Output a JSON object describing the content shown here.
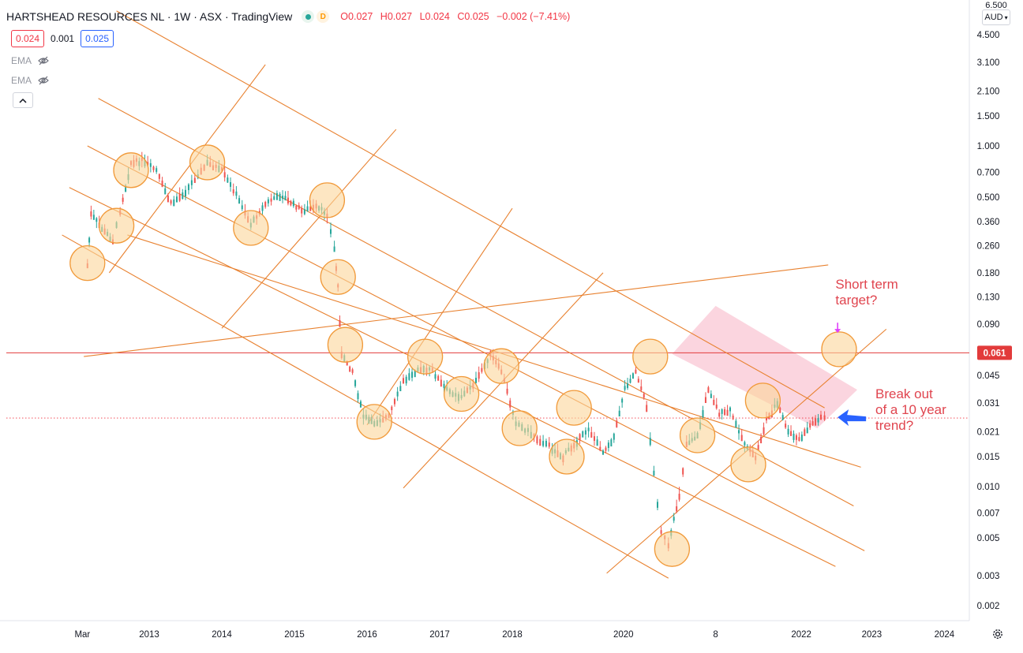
{
  "header": {
    "title": "HARTSHEAD RESOURCES NL · 1W · ASX · TradingView",
    "status_badge": "D",
    "ohlc": {
      "open": "O0.027",
      "high": "H0.027",
      "low": "L0.024",
      "close": "C0.025",
      "change": "−0.002 (−7.41%)"
    }
  },
  "quote": {
    "bid": "0.024",
    "spread": "0.001",
    "ask": "0.025"
  },
  "indicators": [
    {
      "label": "EMA"
    },
    {
      "label": "EMA"
    }
  ],
  "currency": "AUD",
  "colors": {
    "channel": "#e8812f",
    "hline": "#e23b3b",
    "circle_fill": "#fbd59a",
    "circle_stroke": "#f19a3a",
    "zone": "#f7b3c4",
    "annotation": "#e0454f",
    "arrow": "#2962ff",
    "marker": "#e040fb"
  },
  "chart_data": {
    "type": "candlestick",
    "scale": "log",
    "ylim": [
      0.0016,
      6.5
    ],
    "x_ticks": [
      "Mar",
      "2013",
      "2014",
      "2015",
      "2016",
      "2017",
      "2018",
      "2020",
      "8",
      "2022",
      "2023",
      "2024"
    ],
    "y_ticks": [
      "4.500",
      "3.100",
      "2.100",
      "1.500",
      "1.000",
      "0.700",
      "0.500",
      "0.360",
      "0.260",
      "0.180",
      "0.130",
      "0.090",
      "0.061",
      "0.045",
      "0.031",
      "0.021",
      "0.015",
      "0.010",
      "0.007",
      "0.005",
      "0.003",
      "0.002"
    ],
    "y_top_partial": "6.500",
    "current_price_label": "0.061",
    "horizontal_line_value": 0.061,
    "last_close": 0.025,
    "series_points": [
      [
        2012.15,
        0.2
      ],
      [
        2012.2,
        0.4
      ],
      [
        2012.35,
        0.33
      ],
      [
        2012.5,
        0.28
      ],
      [
        2012.6,
        0.42
      ],
      [
        2012.75,
        0.8
      ],
      [
        2012.9,
        0.82
      ],
      [
        2013.1,
        0.72
      ],
      [
        2013.3,
        0.46
      ],
      [
        2013.5,
        0.55
      ],
      [
        2013.8,
        0.8
      ],
      [
        2014.0,
        0.72
      ],
      [
        2014.2,
        0.52
      ],
      [
        2014.4,
        0.35
      ],
      [
        2014.6,
        0.46
      ],
      [
        2014.8,
        0.52
      ],
      [
        2014.95,
        0.47
      ],
      [
        2015.1,
        0.42
      ],
      [
        2015.3,
        0.44
      ],
      [
        2015.45,
        0.4
      ],
      [
        2015.55,
        0.25
      ],
      [
        2015.6,
        0.15
      ],
      [
        2015.65,
        0.06
      ],
      [
        2015.8,
        0.048
      ],
      [
        2015.95,
        0.026
      ],
      [
        2016.1,
        0.024
      ],
      [
        2016.3,
        0.026
      ],
      [
        2016.5,
        0.042
      ],
      [
        2016.7,
        0.05
      ],
      [
        2016.9,
        0.048
      ],
      [
        2017.1,
        0.037
      ],
      [
        2017.3,
        0.034
      ],
      [
        2017.5,
        0.042
      ],
      [
        2017.7,
        0.06
      ],
      [
        2017.85,
        0.048
      ],
      [
        2018.05,
        0.024
      ],
      [
        2018.3,
        0.02
      ],
      [
        2018.55,
        0.017
      ],
      [
        2018.7,
        0.015
      ],
      [
        2018.85,
        0.018
      ],
      [
        2019.05,
        0.022
      ],
      [
        2019.25,
        0.016
      ],
      [
        2019.4,
        0.02
      ],
      [
        2019.55,
        0.038
      ],
      [
        2019.7,
        0.048
      ],
      [
        2019.85,
        0.03
      ],
      [
        2019.95,
        0.012
      ],
      [
        2020.05,
        0.0055
      ],
      [
        2020.15,
        0.0045
      ],
      [
        2020.3,
        0.009
      ],
      [
        2020.4,
        0.018
      ],
      [
        2020.55,
        0.02
      ],
      [
        2020.7,
        0.038
      ],
      [
        2020.85,
        0.027
      ],
      [
        2021.0,
        0.028
      ],
      [
        2021.2,
        0.018
      ],
      [
        2021.35,
        0.015
      ],
      [
        2021.5,
        0.025
      ],
      [
        2021.65,
        0.031
      ],
      [
        2021.8,
        0.021
      ],
      [
        2021.95,
        0.019
      ],
      [
        2022.1,
        0.023
      ],
      [
        2022.25,
        0.026
      ],
      [
        2022.35,
        0.025
      ]
    ],
    "channel_lines": [
      [
        [
          2012.55,
          6.2
        ],
        [
          2022.3,
          0.029
        ]
      ],
      [
        [
          2012.3,
          1.9
        ],
        [
          2022.7,
          0.0077
        ]
      ],
      [
        [
          2012.15,
          1.0
        ],
        [
          2022.85,
          0.0042
        ]
      ],
      [
        [
          2011.9,
          0.57
        ],
        [
          2022.45,
          0.0034
        ]
      ],
      [
        [
          2011.8,
          0.3
        ],
        [
          2020.15,
          0.0029
        ]
      ],
      [
        [
          2012.45,
          0.18
        ],
        [
          2014.6,
          3.0
        ]
      ],
      [
        [
          2014.0,
          0.085
        ],
        [
          2016.4,
          1.25
        ]
      ],
      [
        [
          2016.0,
          0.023
        ],
        [
          2018.0,
          0.43
        ]
      ],
      [
        [
          2016.5,
          0.0098
        ],
        [
          2019.25,
          0.18
        ]
      ],
      [
        [
          2019.3,
          0.0031
        ],
        [
          2023.15,
          0.084
        ]
      ],
      [
        [
          2012.1,
          0.058
        ],
        [
          2022.35,
          0.2
        ]
      ],
      [
        [
          2012.7,
          0.3
        ],
        [
          2022.8,
          0.013
        ]
      ]
    ],
    "target_zone": [
      [
        2020.2,
        0.06
      ],
      [
        2020.8,
        0.115
      ],
      [
        2022.75,
        0.037
      ],
      [
        2022.2,
        0.022
      ]
    ],
    "highlight_circles": [
      [
        2012.15,
        0.205
      ],
      [
        2012.55,
        0.34
      ],
      [
        2012.75,
        0.72
      ],
      [
        2013.8,
        0.8
      ],
      [
        2014.4,
        0.33
      ],
      [
        2015.45,
        0.48
      ],
      [
        2015.6,
        0.17
      ],
      [
        2015.7,
        0.068
      ],
      [
        2016.1,
        0.024
      ],
      [
        2016.8,
        0.058
      ],
      [
        2017.3,
        0.035
      ],
      [
        2017.85,
        0.051
      ],
      [
        2018.1,
        0.022
      ],
      [
        2018.75,
        0.015
      ],
      [
        2018.85,
        0.029
      ],
      [
        2019.9,
        0.058
      ],
      [
        2020.2,
        0.0043
      ],
      [
        2020.55,
        0.02
      ],
      [
        2021.25,
        0.0135
      ],
      [
        2021.45,
        0.032
      ],
      [
        2022.5,
        0.064
      ]
    ],
    "annotations": [
      {
        "text_lines": [
          "Short term",
          "target?"
        ],
        "anchor": [
          2022.45,
          0.145
        ]
      },
      {
        "text_lines": [
          "Break out",
          "of a 10 year",
          "trend?"
        ],
        "anchor": [
          2023.0,
          0.033
        ]
      }
    ]
  }
}
